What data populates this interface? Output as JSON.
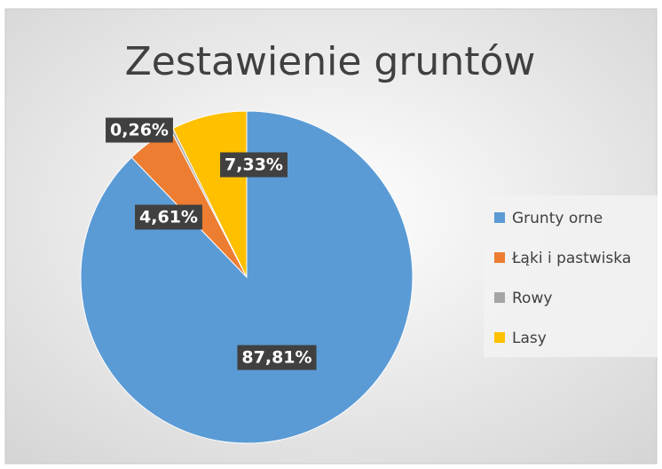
{
  "chart_data": {
    "type": "pie",
    "title": "Zestawienie gruntów",
    "categories": [
      "Grunty orne",
      "Łąki i pastwiska",
      "Rowy",
      "Lasy"
    ],
    "values": [
      87.81,
      4.61,
      0.26,
      7.33
    ],
    "value_labels": [
      "87,81%",
      "4,61%",
      "0,26%",
      "7,33%"
    ],
    "colors": [
      "#5b9bd5",
      "#ed7d31",
      "#a5a5a5",
      "#ffc000"
    ],
    "legend": "right"
  }
}
